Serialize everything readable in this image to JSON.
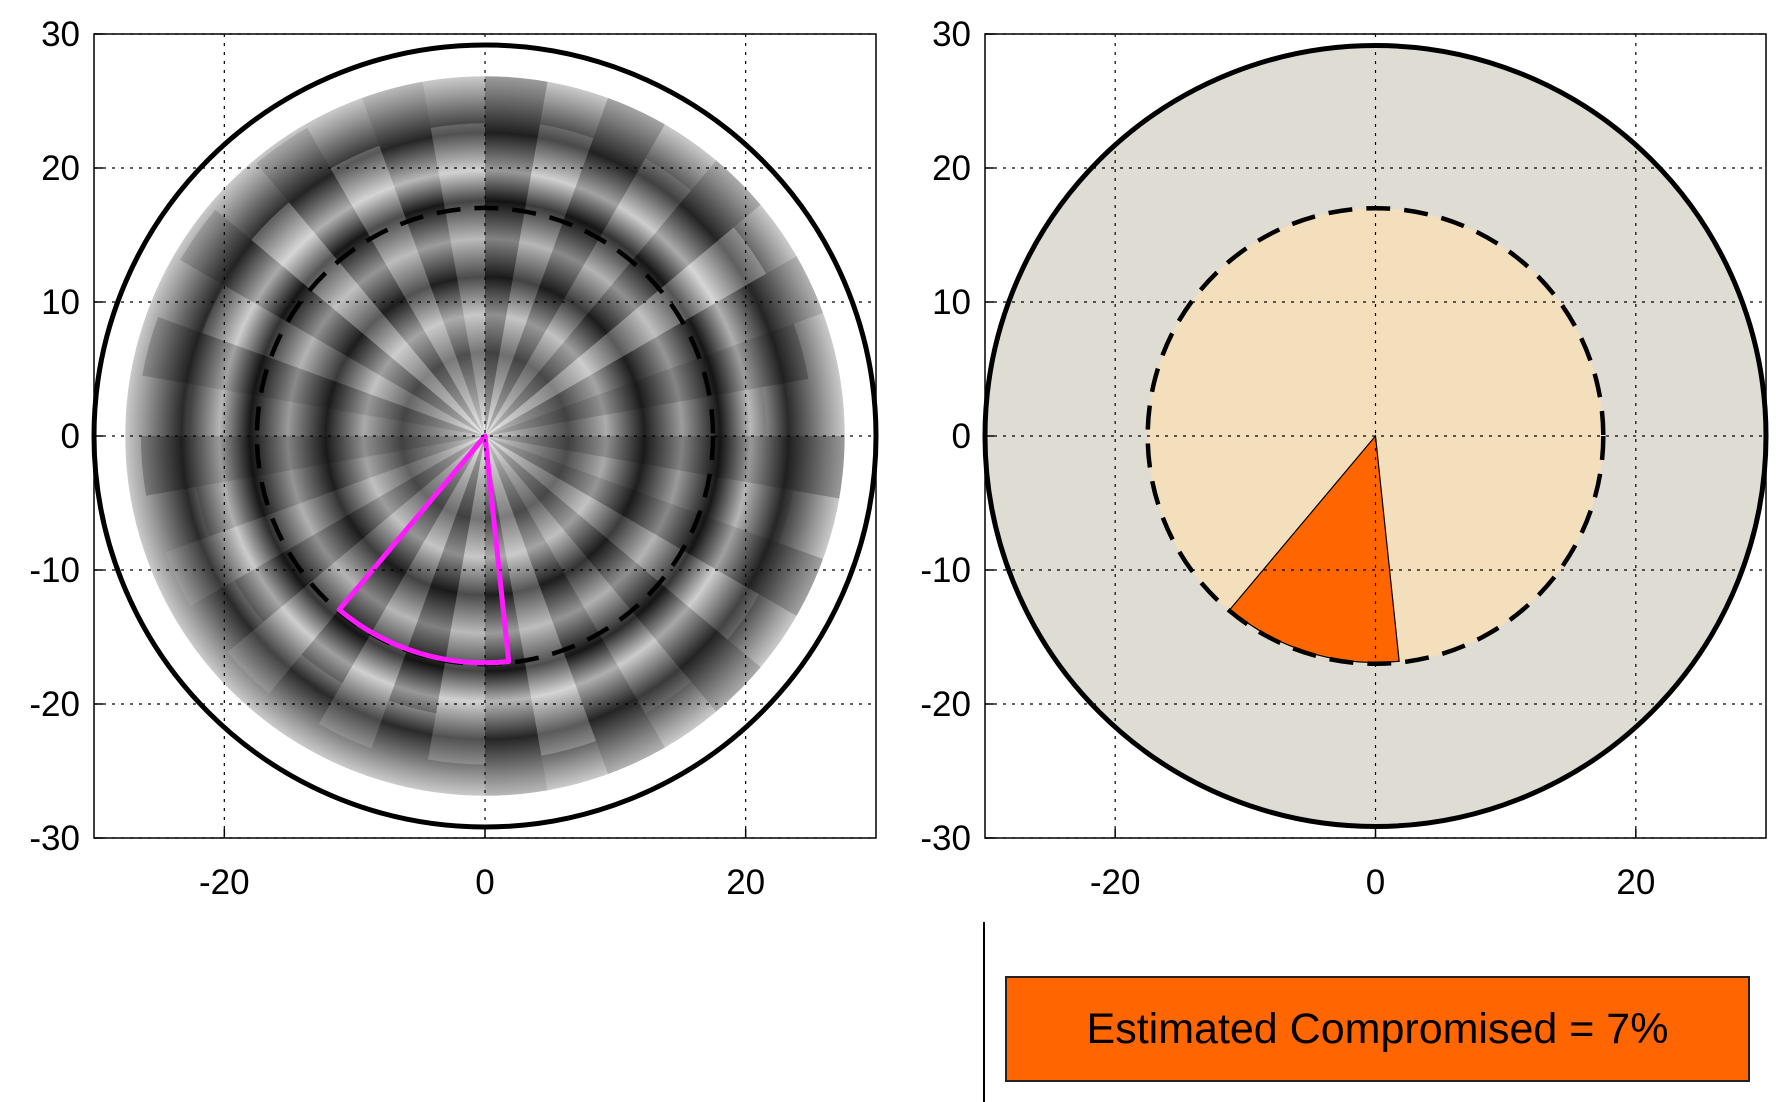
{
  "chart_data": [
    {
      "type": "polar-map",
      "panel": "left",
      "title": "",
      "xlim": [
        -30,
        30
      ],
      "ylim": [
        -30,
        30
      ],
      "xticks": [
        -20,
        0,
        20
      ],
      "yticks": [
        30,
        20,
        10,
        0,
        -10,
        -20,
        -30
      ],
      "grid": "dotted",
      "outer_radius": 30,
      "inner_radius_dashed": 17.5,
      "highlight_sector": {
        "color": "#ff1aff",
        "start_deg": 230,
        "end_deg": 276,
        "radius": 17.4
      }
    },
    {
      "type": "pie",
      "panel": "right",
      "title": "",
      "xlim": [
        -30,
        30
      ],
      "ylim": [
        -30,
        30
      ],
      "xticks": [
        -20,
        0,
        20
      ],
      "yticks": [
        30,
        20,
        10,
        0,
        -10,
        -20,
        -30
      ],
      "grid": "dotted",
      "outer_radius": 30,
      "inner_radius_dashed": 17.5,
      "colors": {
        "outer": "#dfdcd4",
        "inner": "#f4dfbd",
        "sector": "#ff6600"
      },
      "compromised_sector": {
        "start_deg": 230,
        "end_deg": 276,
        "radius": 17.4,
        "percent": 7
      }
    }
  ],
  "status": {
    "label": "Estimated Compromised = 7%"
  }
}
